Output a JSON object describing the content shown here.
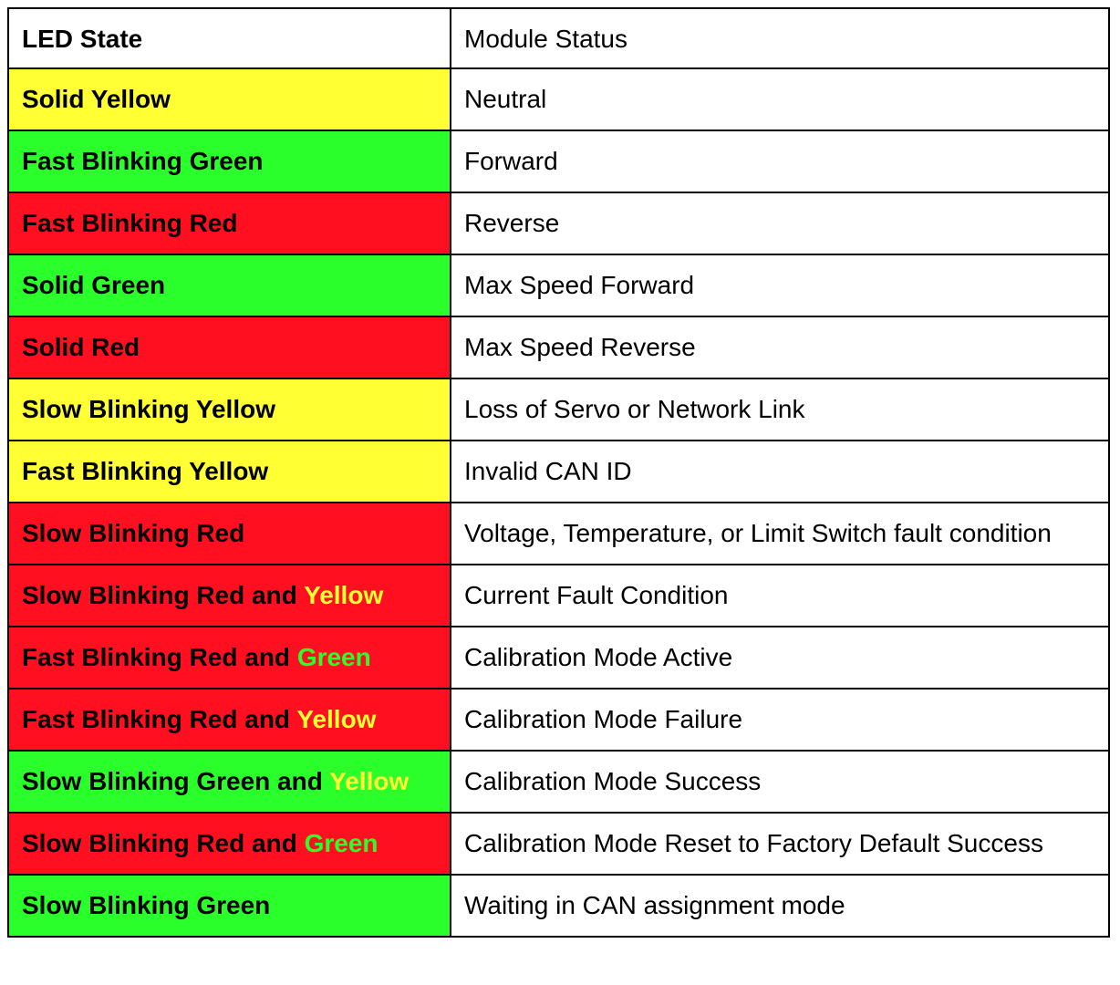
{
  "colors": {
    "yellow": "#ffff33",
    "green": "#2bff2b",
    "red": "#ff0f1f",
    "border": "#000000"
  },
  "headers": {
    "led_state": "LED State",
    "module_status": "Module Status"
  },
  "rows": [
    {
      "led": "Solid Yellow",
      "led_color": "",
      "bg": "yellow",
      "status": "Neutral"
    },
    {
      "led": "Fast Blinking Green",
      "led_color": "",
      "bg": "green",
      "status": "Forward"
    },
    {
      "led": "Fast Blinking Red",
      "led_color": "",
      "bg": "red",
      "status": "Reverse"
    },
    {
      "led": "Solid Green",
      "led_color": "",
      "bg": "green",
      "status": "Max Speed Forward"
    },
    {
      "led": "Solid Red",
      "led_color": "",
      "bg": "red",
      "status": "Max Speed Reverse"
    },
    {
      "led": "Slow Blinking Yellow",
      "led_color": "",
      "bg": "yellow",
      "status": "Loss of Servo or Network Link"
    },
    {
      "led": "Fast Blinking Yellow",
      "led_color": "",
      "bg": "yellow",
      "status": "Invalid CAN ID"
    },
    {
      "led": "Slow Blinking Red",
      "led_color": "",
      "bg": "red",
      "status": "Voltage, Temperature, or Limit Switch fault condition"
    },
    {
      "led": "Slow Blinking Red and ",
      "led_color": "Yellow",
      "bg": "red",
      "hl": "yellow",
      "status": "Current Fault Condition"
    },
    {
      "led": "Fast Blinking Red and ",
      "led_color": "Green",
      "bg": "red",
      "hl": "green",
      "status": "Calibration Mode Active"
    },
    {
      "led": "Fast Blinking Red and ",
      "led_color": "Yellow",
      "bg": "red",
      "hl": "yellow",
      "status": "Calibration Mode Failure"
    },
    {
      "led": "Slow Blinking Green and ",
      "led_color": "Yellow",
      "bg": "green",
      "hl": "yellow",
      "status": "Calibration Mode Success"
    },
    {
      "led": "Slow Blinking Red and ",
      "led_color": "Green",
      "bg": "red",
      "hl": "green",
      "status": "Calibration Mode Reset to Factory Default Success"
    },
    {
      "led": "Slow Blinking Green",
      "led_color": "",
      "bg": "green",
      "status": "Waiting in CAN assignment mode"
    }
  ]
}
